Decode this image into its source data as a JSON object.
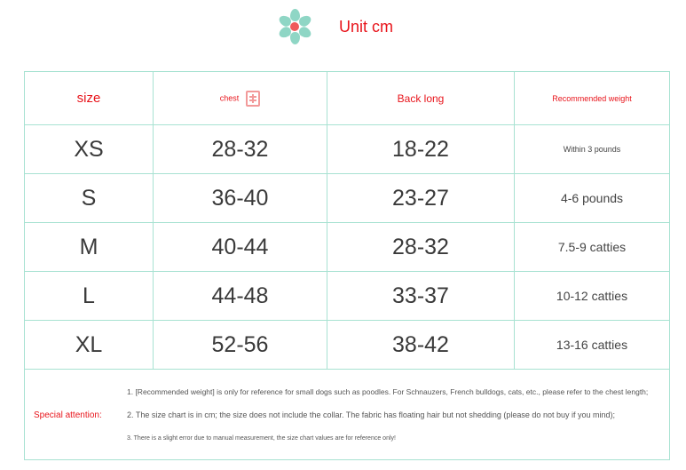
{
  "header": {
    "unit": "Unit cm",
    "logo_icon": "flower-icon"
  },
  "colors": {
    "accent": "#e8141b",
    "border": "#a8e2d2",
    "logo": "#8fd6c5"
  },
  "table": {
    "columns": [
      "size",
      "chest",
      "Back long",
      "Recommended weight"
    ],
    "chest_icon": "circumference-stamp-icon",
    "rows": [
      [
        "XS",
        "28-32",
        "18-22",
        "Within 3 pounds"
      ],
      [
        "S",
        "36-40",
        "23-27",
        "4-6 pounds"
      ],
      [
        "M",
        "40-44",
        "28-32",
        "7.5-9 catties"
      ],
      [
        "L",
        "44-48",
        "33-37",
        "10-12 catties"
      ],
      [
        "XL",
        "52-56",
        "38-42",
        "13-16 catties"
      ]
    ]
  },
  "notes": {
    "label": "Special attention:",
    "items": [
      "1. [Recommended weight] is only for reference for small dogs such as poodles. For Schnauzers, French bulldogs, cats, etc., please refer to the chest length;",
      "2. The size chart is in cm; the size does not include the collar. The fabric has floating hair but not shedding (please do not buy if you mind);",
      "3. There is a slight error due to manual measurement, the size chart values are for reference only!"
    ]
  }
}
